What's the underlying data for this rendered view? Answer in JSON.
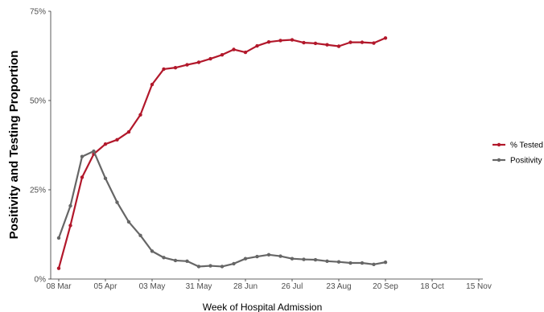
{
  "chart_data": {
    "type": "line",
    "title": "",
    "xlabel": "Week of Hospital Admission",
    "ylabel": "Positivity and Testing Proportion",
    "ylim": [
      0,
      75
    ],
    "y_ticks": [
      0,
      25,
      50,
      75
    ],
    "y_tick_labels": [
      "0%",
      "25%",
      "50%",
      "75%"
    ],
    "x_week_range": [
      0,
      34
    ],
    "x_ticks": [
      0,
      4,
      8,
      12,
      16,
      20,
      24,
      28,
      32,
      36
    ],
    "x_tick_labels": [
      "08 Mar",
      "05 Apr",
      "03 May",
      "31 May",
      "28 Jun",
      "26 Jul",
      "23 Aug",
      "20 Sep",
      "18 Oct",
      "15 Nov"
    ],
    "x_week_labels": [
      "08 Mar",
      "15 Mar",
      "22 Mar",
      "29 Mar",
      "05 Apr",
      "12 Apr",
      "19 Apr",
      "26 Apr",
      "03 May",
      "10 May",
      "17 May",
      "24 May",
      "31 May",
      "07 Jun",
      "14 Jun",
      "21 Jun",
      "28 Jun",
      "05 Jul",
      "12 Jul",
      "19 Jul",
      "26 Jul",
      "02 Aug",
      "09 Aug",
      "16 Aug",
      "23 Aug",
      "30 Aug",
      "06 Sep",
      "13 Sep",
      "20 Sep"
    ],
    "grid": false,
    "legend_position": "right",
    "series": [
      {
        "name": "% Tested",
        "color": "#b2182b",
        "values": [
          3,
          15,
          28.5,
          35,
          37.8,
          39,
          41.2,
          46,
          54.5,
          58.8,
          59.2,
          60,
          60.7,
          61.7,
          62.8,
          64.3,
          63.5,
          65.3,
          66.4,
          66.8,
          67,
          66.2,
          66,
          65.6,
          65.2,
          66.3,
          66.3,
          66.1,
          67.5
        ]
      },
      {
        "name": "Positivity",
        "color": "#666666",
        "values": [
          11.5,
          20.5,
          34.3,
          35.8,
          28.2,
          21.5,
          16,
          12.2,
          7.8,
          6,
          5.2,
          5,
          3.5,
          3.7,
          3.5,
          4.3,
          5.7,
          6.3,
          6.8,
          6.4,
          5.7,
          5.5,
          5.4,
          5,
          4.8,
          4.5,
          4.5,
          4.1,
          4.7
        ]
      }
    ]
  }
}
